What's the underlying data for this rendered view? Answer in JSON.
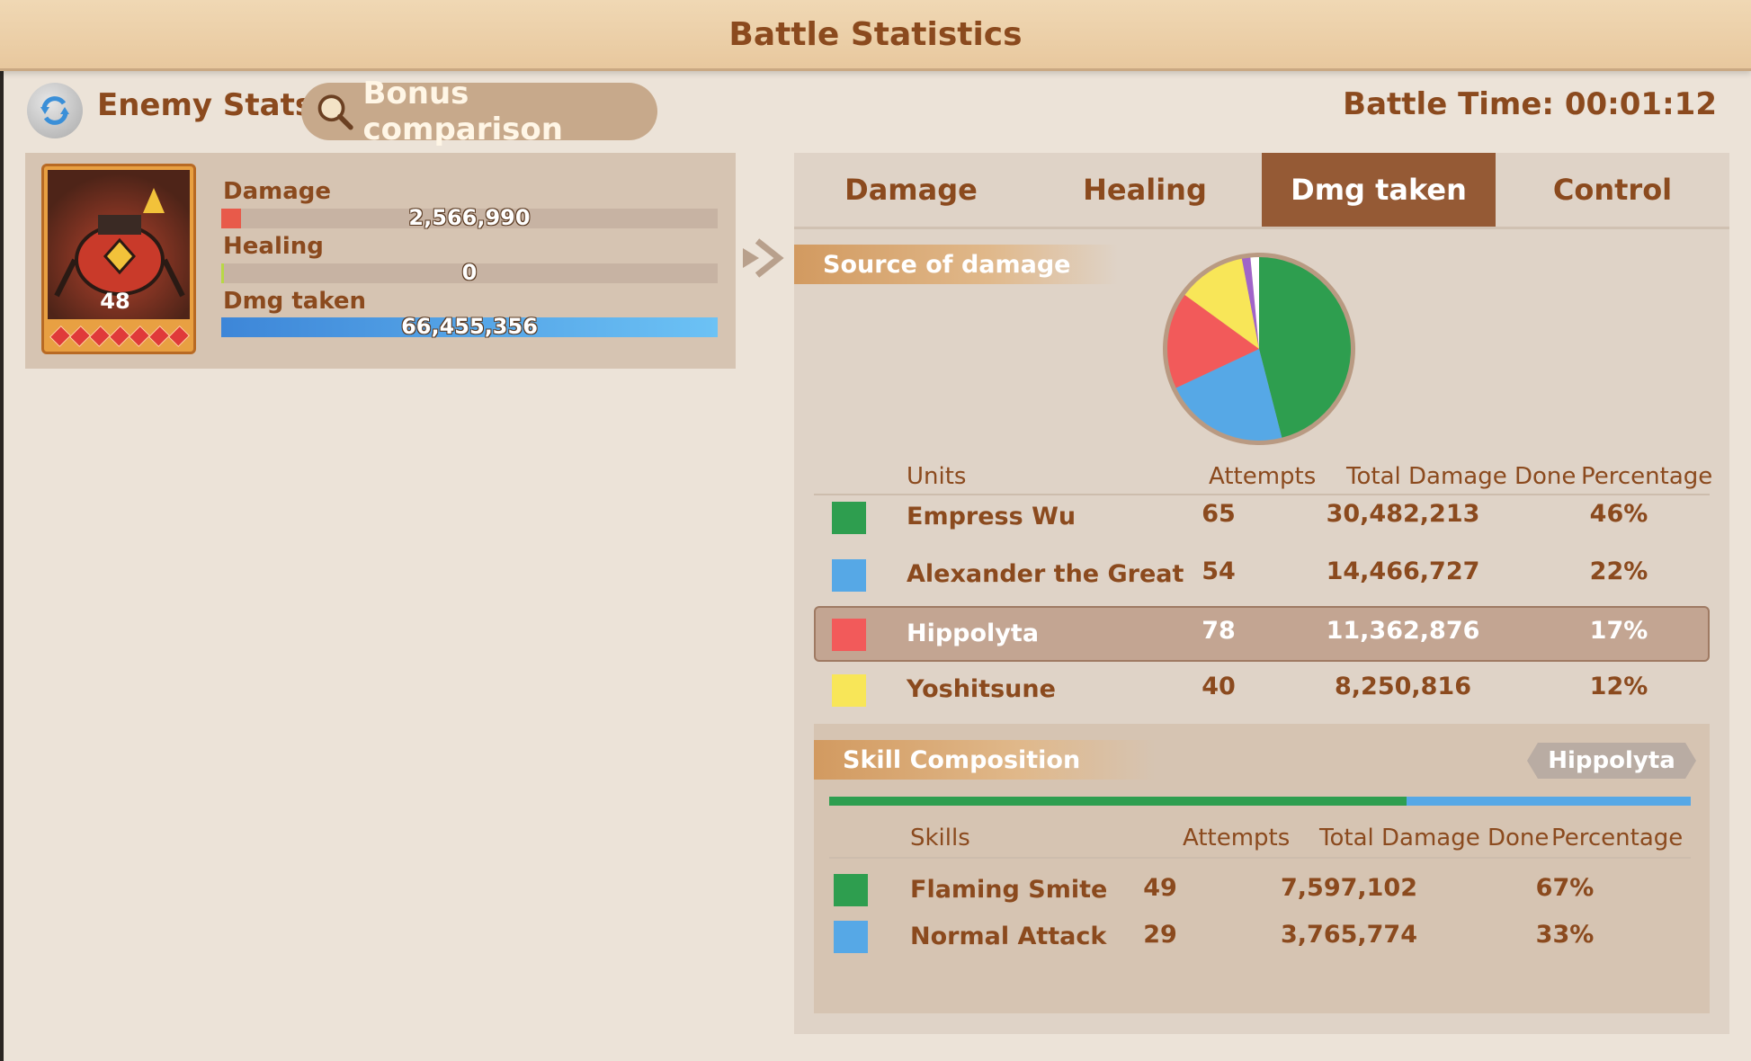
{
  "title": "Battle Statistics",
  "header": {
    "enemy_stats_label": "Enemy Stats",
    "bonus_comparison_label": "Bonus comparison",
    "battle_time": "Battle Time: 00:01:12"
  },
  "hero": {
    "level": "48",
    "stars": 7,
    "stats": [
      {
        "label": "Damage",
        "value": "2,566,990",
        "fill_fraction": 0.04
      },
      {
        "label": "Healing",
        "value": "0",
        "fill_fraction": 0.0
      },
      {
        "label": "Dmg taken",
        "value": "66,455,356",
        "fill_fraction": 1.0
      }
    ]
  },
  "tabs": [
    "Damage",
    "Healing",
    "Dmg taken",
    "Control"
  ],
  "active_tab": "Dmg taken",
  "source_section": {
    "label": "Source of damage",
    "columns": [
      "Units",
      "Attempts",
      "Total Damage Done",
      "Percentage"
    ],
    "rows": [
      {
        "color": "#2e9e4f",
        "name": "Empress Wu",
        "attempts": "65",
        "total": "30,482,213",
        "pct": "46%"
      },
      {
        "color": "#56a8e6",
        "name": "Alexander the Great",
        "attempts": "54",
        "total": "14,466,727",
        "pct": "22%"
      },
      {
        "color": "#f25a5a",
        "name": "Hippolyta",
        "attempts": "78",
        "total": "11,362,876",
        "pct": "17%"
      },
      {
        "color": "#f8e658",
        "name": "Yoshitsune",
        "attempts": "40",
        "total": "8,250,816",
        "pct": "12%"
      }
    ],
    "selected_row": "Hippolyta"
  },
  "pie_slices": [
    {
      "name": "Empress Wu",
      "percent": 46,
      "color": "#2e9e4f"
    },
    {
      "name": "Alexander the Great",
      "percent": 22,
      "color": "#56a8e6"
    },
    {
      "name": "Hippolyta",
      "percent": 17,
      "color": "#f25a5a"
    },
    {
      "name": "Yoshitsune",
      "percent": 12,
      "color": "#f8e658"
    },
    {
      "name": "other-purple",
      "percent": 1.5,
      "color": "#a065c9"
    },
    {
      "name": "other-white",
      "percent": 1.5,
      "color": "#ffffff"
    }
  ],
  "skill_section": {
    "label": "Skill Composition",
    "selected_hero": "Hippolyta",
    "columns": [
      "Skills",
      "Attempts",
      "Total Damage Done",
      "Percentage"
    ],
    "bar": [
      {
        "color": "#2e9e4f",
        "percent": 67
      },
      {
        "color": "#56a8e6",
        "percent": 33
      }
    ],
    "rows": [
      {
        "color": "#2e9e4f",
        "name": "Flaming Smite",
        "attempts": "49",
        "total": "7,597,102",
        "pct": "67%"
      },
      {
        "color": "#56a8e6",
        "name": "Normal Attack",
        "attempts": "29",
        "total": "3,765,774",
        "pct": "33%"
      }
    ]
  }
}
